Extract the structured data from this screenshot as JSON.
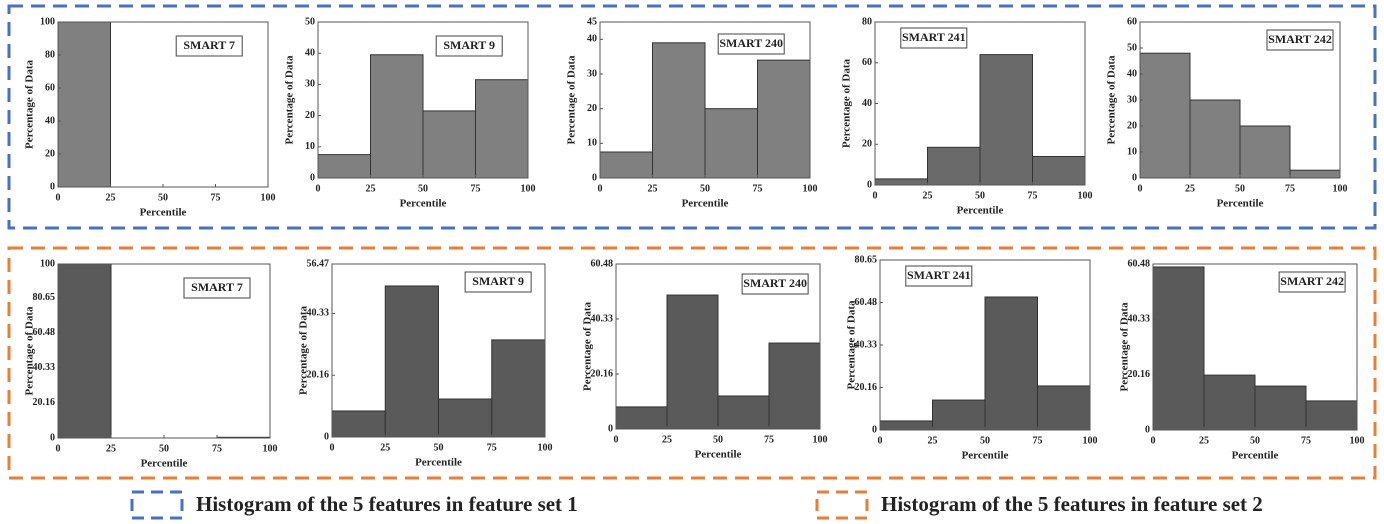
{
  "chart_data": [
    {
      "type": "histogram",
      "title": "SMART 7",
      "xlabel": "Percentile",
      "ylabel": "Percentage of Data",
      "bins": [
        0,
        25,
        50,
        75,
        100
      ],
      "values": [
        100,
        0,
        0,
        0
      ],
      "color": "#808080",
      "xlim": [
        0,
        100
      ],
      "xticks": [
        0,
        25,
        50,
        75,
        100
      ],
      "ylim": [
        0,
        100
      ],
      "yticks": [
        0,
        20,
        40,
        60,
        80,
        100
      ]
    },
    {
      "type": "histogram",
      "title": "SMART 9",
      "xlabel": "Percentile",
      "ylabel": "Percentage of Data",
      "bins": [
        0,
        25,
        50,
        75,
        100
      ],
      "values": [
        7.5,
        39.5,
        21.5,
        31.5
      ],
      "color": "#808080",
      "xlim": [
        0,
        100
      ],
      "xticks": [
        0,
        25,
        50,
        75,
        100
      ],
      "ylim": [
        0,
        50
      ],
      "yticks": [
        0,
        10,
        20,
        30,
        40,
        50
      ]
    },
    {
      "type": "histogram",
      "title": "SMART 240",
      "xlabel": "Percentile",
      "ylabel": "Percentage of Data",
      "bins": [
        0,
        25,
        50,
        75,
        100
      ],
      "values": [
        7.5,
        39,
        20,
        34
      ],
      "color": "#808080",
      "xlim": [
        0,
        100
      ],
      "xticks": [
        0,
        25,
        50,
        75,
        100
      ],
      "ylim": [
        0,
        45
      ],
      "yticks": [
        0,
        10,
        20,
        30,
        40,
        45
      ]
    },
    {
      "type": "histogram",
      "title": "SMART 241",
      "xlabel": "Percentile",
      "ylabel": "Percentage of Data",
      "bins": [
        0,
        25,
        50,
        75,
        100
      ],
      "values": [
        3,
        18.5,
        64,
        14
      ],
      "color": "#6a6a6a",
      "xlim": [
        0,
        100
      ],
      "xticks": [
        0,
        25,
        50,
        75,
        100
      ],
      "ylim": [
        0,
        80
      ],
      "yticks": [
        0,
        20,
        40,
        60,
        80
      ]
    },
    {
      "type": "histogram",
      "title": "SMART 242",
      "xlabel": "Percentile",
      "ylabel": "Percentage of Data",
      "bins": [
        0,
        25,
        50,
        75,
        100
      ],
      "values": [
        48,
        30,
        20,
        3
      ],
      "color": "#808080",
      "xlim": [
        0,
        100
      ],
      "xticks": [
        0,
        25,
        50,
        75,
        100
      ],
      "ylim": [
        0,
        60
      ],
      "yticks": [
        0,
        10,
        20,
        30,
        40,
        50,
        60
      ]
    },
    {
      "type": "histogram",
      "title": "SMART 7",
      "xlabel": "Percentile",
      "ylabel": "Percentage of Data",
      "bins": [
        0,
        25,
        50,
        75,
        100
      ],
      "values": [
        100,
        0,
        0,
        0.4
      ],
      "color": "#5a5a5a",
      "xlim": [
        0,
        100
      ],
      "xticks": [
        0,
        25,
        50,
        75,
        100
      ],
      "ylim": [
        0,
        100
      ],
      "yticks": [
        0,
        20.16,
        40.33,
        60.48,
        80.65,
        100
      ]
    },
    {
      "type": "histogram",
      "title": "SMART 9",
      "xlabel": "Percentile",
      "ylabel": "Percentage of Data",
      "bins": [
        0,
        25,
        50,
        75,
        100
      ],
      "values": [
        8.5,
        49.3,
        12.4,
        31.7
      ],
      "color": "#5a5a5a",
      "xlim": [
        0,
        100
      ],
      "xticks": [
        0,
        25,
        50,
        75,
        100
      ],
      "ylim": [
        0,
        56.47
      ],
      "yticks": [
        0,
        20.16,
        40.33,
        56.47
      ]
    },
    {
      "type": "histogram",
      "title": "SMART 240",
      "xlabel": "Percentile",
      "ylabel": "Percentage of Data",
      "bins": [
        0,
        25,
        50,
        75,
        100
      ],
      "values": [
        8.1,
        49.1,
        12.1,
        31.5
      ],
      "color": "#5a5a5a",
      "xlim": [
        0,
        100
      ],
      "xticks": [
        0,
        25,
        50,
        75,
        100
      ],
      "ylim": [
        0,
        60.48
      ],
      "yticks": [
        0,
        20.16,
        40.33,
        60.48
      ]
    },
    {
      "type": "histogram",
      "title": "SMART 241",
      "xlabel": "Percentile",
      "ylabel": "Percentage of Data",
      "bins": [
        0,
        25,
        50,
        75,
        100
      ],
      "values": [
        4.3,
        14.2,
        63.1,
        20.9
      ],
      "color": "#5a5a5a",
      "xlim": [
        0,
        100
      ],
      "xticks": [
        0,
        25,
        50,
        75,
        100
      ],
      "ylim": [
        0,
        80.65
      ],
      "yticks": [
        0,
        20.16,
        40.33,
        60.48,
        80.65
      ]
    },
    {
      "type": "histogram",
      "title": "SMART 242",
      "xlabel": "Percentile",
      "ylabel": "Percentage of Data",
      "bins": [
        0,
        25,
        50,
        75,
        100
      ],
      "values": [
        59.4,
        20,
        16,
        10.6
      ],
      "color": "#5a5a5a",
      "xlim": [
        0,
        100
      ],
      "xticks": [
        0,
        25,
        50,
        75,
        100
      ],
      "ylim": [
        0,
        60.48
      ],
      "yticks": [
        0,
        20.16,
        40.33,
        60.48
      ]
    }
  ],
  "legend": [
    {
      "label": "Histogram of the 5 features in feature set 1",
      "color": "#4472c4"
    },
    {
      "label": "Histogram of the 5 features in feature set 2",
      "color": "#ed7d31"
    }
  ]
}
